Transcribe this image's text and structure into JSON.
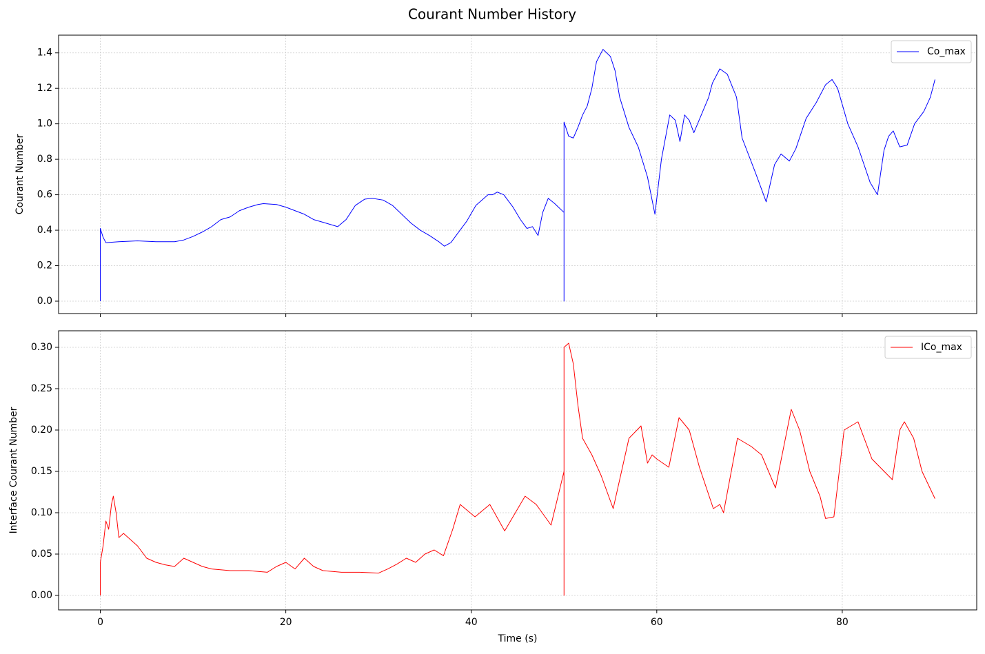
{
  "title": "Courant Number History",
  "chart_data": [
    {
      "type": "line",
      "ylabel": "Courant Number",
      "legend": "upper right",
      "grid": true,
      "xlim": [
        -4.5,
        94.5
      ],
      "ylim": [
        -0.07,
        1.5
      ],
      "yticks": [
        {
          "value": 0,
          "label": "0.0"
        },
        0.2,
        0.4,
        0.6,
        0.8,
        {
          "value": 1,
          "label": "1.0"
        },
        1.2,
        1.4
      ],
      "x": [
        0,
        0,
        0.3,
        0.6,
        2,
        4,
        6,
        8,
        9,
        10,
        11,
        12,
        13,
        14,
        15,
        16,
        17,
        17.6,
        19,
        20,
        21,
        22,
        23,
        24,
        25.6,
        26.5,
        27.5,
        28.5,
        29.3,
        30.5,
        31.5,
        32.5,
        33.5,
        34.5,
        35.5,
        36.5,
        37.1,
        37.8,
        38.5,
        39.5,
        40.5,
        41.8,
        42.3,
        42.8,
        43.5,
        44.5,
        45.3,
        46,
        46.6,
        47.2,
        47.7,
        48.3,
        49,
        50,
        50,
        50,
        50.5,
        51,
        51.5,
        52,
        52.5,
        53,
        53.5,
        54.2,
        55,
        55.5,
        56,
        57,
        58,
        59,
        59.8,
        60.5,
        61.4,
        62,
        62.5,
        63,
        63.5,
        64,
        64.8,
        65.6,
        66,
        66.8,
        67.6,
        68.6,
        69.2,
        70.6,
        71.8,
        72.7,
        73.4,
        74.3,
        75,
        76.1,
        77.2,
        78.2,
        78.9,
        79.5,
        80.6,
        81.7,
        83,
        83.8,
        84.5,
        85,
        85.5,
        86.2,
        87,
        87.8,
        88.8,
        89.5,
        90
      ],
      "series": [
        {
          "name": "Co_max",
          "color": "#0000ff",
          "values": [
            0,
            0.41,
            0.36,
            0.33,
            0.335,
            0.34,
            0.335,
            0.335,
            0.345,
            0.365,
            0.39,
            0.42,
            0.46,
            0.475,
            0.51,
            0.53,
            0.545,
            0.55,
            0.545,
            0.53,
            0.51,
            0.49,
            0.46,
            0.445,
            0.42,
            0.46,
            0.54,
            0.575,
            0.58,
            0.57,
            0.54,
            0.49,
            0.44,
            0.4,
            0.37,
            0.335,
            0.31,
            0.33,
            0.38,
            0.45,
            0.54,
            0.6,
            0.6,
            0.615,
            0.6,
            0.53,
            0.46,
            0.41,
            0.42,
            0.37,
            0.5,
            0.58,
            0.55,
            0.5,
            0,
            1.01,
            0.93,
            0.92,
            0.98,
            1.05,
            1.1,
            1.2,
            1.35,
            1.42,
            1.38,
            1.3,
            1.15,
            0.98,
            0.87,
            0.7,
            0.49,
            0.8,
            1.05,
            1.02,
            0.9,
            1.05,
            1.02,
            0.95,
            1.05,
            1.15,
            1.23,
            1.31,
            1.28,
            1.15,
            0.92,
            0.73,
            0.56,
            0.77,
            0.83,
            0.79,
            0.86,
            1.03,
            1.12,
            1.22,
            1.25,
            1.2,
            1.0,
            0.87,
            0.67,
            0.6,
            0.85,
            0.93,
            0.96,
            0.87,
            0.88,
            1.0,
            1.07,
            1.15,
            1.25
          ]
        }
      ]
    },
    {
      "type": "line",
      "ylabel": "Interface Courant Number",
      "xlabel": "Time (s)",
      "legend": "upper right",
      "grid": true,
      "xlim": [
        -4.5,
        94.5
      ],
      "ylim": [
        -0.0175,
        0.32
      ],
      "xticks": [
        0,
        20,
        40,
        60,
        80
      ],
      "yticks": [
        {
          "value": 0,
          "label": "0.00"
        },
        {
          "value": 0.05,
          "label": "0.05"
        },
        {
          "value": 0.1,
          "label": "0.10"
        },
        {
          "value": 0.15,
          "label": "0.15"
        },
        {
          "value": 0.2,
          "label": "0.20"
        },
        {
          "value": 0.25,
          "label": "0.25"
        },
        {
          "value": 0.3,
          "label": "0.30"
        }
      ],
      "x": [
        0,
        0,
        0.3,
        0.6,
        0.9,
        1.2,
        1.4,
        1.7,
        2,
        2.5,
        3,
        4,
        5,
        6,
        7,
        8,
        9,
        10,
        11,
        12,
        14,
        16,
        18,
        19,
        20,
        21,
        22,
        23,
        24,
        26,
        28,
        30,
        31,
        32,
        33,
        34,
        35,
        36,
        37,
        38,
        38.8,
        40.4,
        42,
        43.6,
        45.8,
        47,
        48.6,
        50,
        50,
        50,
        50.5,
        51,
        51.5,
        52,
        53,
        54,
        55.3,
        56,
        57,
        58.3,
        59,
        59.5,
        60,
        61.3,
        62.4,
        63.5,
        64.6,
        66.1,
        66.8,
        67.2,
        68.7,
        70.2,
        71.3,
        72.8,
        74.5,
        75.4,
        76.5,
        77.6,
        78.2,
        79.1,
        80.2,
        81.7,
        83.2,
        85.4,
        86.2,
        86.7,
        87.7,
        88.6,
        90
      ],
      "series": [
        {
          "name": "ICo_max",
          "color": "#ff0000",
          "values": [
            0,
            0.04,
            0.06,
            0.09,
            0.08,
            0.11,
            0.12,
            0.1,
            0.07,
            0.075,
            0.07,
            0.06,
            0.045,
            0.04,
            0.037,
            0.035,
            0.045,
            0.04,
            0.035,
            0.032,
            0.03,
            0.03,
            0.028,
            0.035,
            0.04,
            0.032,
            0.045,
            0.035,
            0.03,
            0.028,
            0.028,
            0.027,
            0.032,
            0.038,
            0.045,
            0.04,
            0.05,
            0.055,
            0.048,
            0.08,
            0.11,
            0.095,
            0.11,
            0.078,
            0.12,
            0.11,
            0.085,
            0.15,
            0,
            0.3,
            0.305,
            0.28,
            0.23,
            0.19,
            0.17,
            0.145,
            0.105,
            0.14,
            0.19,
            0.205,
            0.16,
            0.17,
            0.165,
            0.155,
            0.215,
            0.2,
            0.155,
            0.105,
            0.11,
            0.1,
            0.19,
            0.18,
            0.17,
            0.13,
            0.225,
            0.2,
            0.15,
            0.12,
            0.093,
            0.095,
            0.2,
            0.21,
            0.165,
            0.14,
            0.2,
            0.21,
            0.19,
            0.15,
            0.117
          ]
        }
      ]
    }
  ]
}
